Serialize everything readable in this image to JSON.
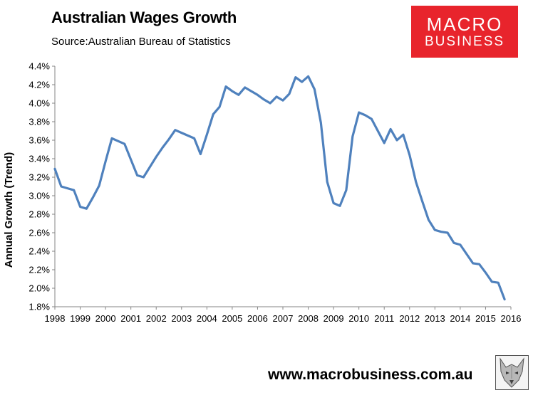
{
  "header": {
    "title": "Australian Wages Growth",
    "subtitle": "Source:Australian Bureau of Statistics"
  },
  "logo": {
    "line1": "MACRO",
    "line2": "BUSINESS"
  },
  "footer": {
    "website": "www.macrobusiness.com.au",
    "mascot_icon": "wolf-icon"
  },
  "colors": {
    "line": "#4f81bd",
    "logo_bg": "#e8242c"
  },
  "chart_data": {
    "type": "line",
    "title": "Australian Wages Growth",
    "xlabel": "",
    "ylabel": "Annual Growth (Trend)",
    "xlim": [
      1998,
      2016
    ],
    "ylim": [
      1.8,
      4.4
    ],
    "x_ticks": [
      "1998",
      "1999",
      "2000",
      "2001",
      "2002",
      "2003",
      "2004",
      "2005",
      "2006",
      "2007",
      "2008",
      "2009",
      "2010",
      "2011",
      "2012",
      "2013",
      "2014",
      "2015",
      "2016"
    ],
    "y_ticks": [
      "1.8%",
      "2.0%",
      "2.2%",
      "2.4%",
      "2.6%",
      "2.8%",
      "3.0%",
      "3.2%",
      "3.4%",
      "3.6%",
      "3.8%",
      "4.0%",
      "4.2%",
      "4.4%"
    ],
    "grid": false,
    "legend": "none",
    "series": [
      {
        "x": [
          1998.0,
          1998.25,
          1998.5,
          1998.75,
          1999.0,
          1999.25,
          1999.5,
          1999.75,
          2000.0,
          2000.25,
          2000.5,
          2000.75,
          2001.0,
          2001.25,
          2001.5,
          2001.75,
          2002.0,
          2002.25,
          2002.5,
          2002.75,
          2003.0,
          2003.25,
          2003.5,
          2003.75,
          2004.0,
          2004.25,
          2004.5,
          2004.75,
          2005.0,
          2005.25,
          2005.5,
          2005.75,
          2006.0,
          2006.25,
          2006.5,
          2006.75,
          2007.0,
          2007.25,
          2007.5,
          2007.75,
          2008.0,
          2008.25,
          2008.5,
          2008.75,
          2009.0,
          2009.25,
          2009.5,
          2009.75,
          2010.0,
          2010.25,
          2010.5,
          2010.75,
          2011.0,
          2011.25,
          2011.5,
          2011.75,
          2012.0,
          2012.25,
          2012.5,
          2012.75,
          2013.0,
          2013.25,
          2013.5,
          2013.75,
          2014.0,
          2014.25,
          2014.5,
          2014.75,
          2015.0,
          2015.25,
          2015.5,
          2015.75
        ],
        "y": [
          3.29,
          3.1,
          3.08,
          3.06,
          2.88,
          2.86,
          2.98,
          3.11,
          3.37,
          3.62,
          3.59,
          3.56,
          3.39,
          3.22,
          3.2,
          3.31,
          3.42,
          3.52,
          3.61,
          3.71,
          3.68,
          3.65,
          3.62,
          3.45,
          3.66,
          3.88,
          3.96,
          4.18,
          4.13,
          4.09,
          4.17,
          4.13,
          4.09,
          4.04,
          4.0,
          4.07,
          4.03,
          4.1,
          4.28,
          4.23,
          4.29,
          4.15,
          3.79,
          3.15,
          2.92,
          2.89,
          3.06,
          3.64,
          3.9,
          3.87,
          3.83,
          3.7,
          3.57,
          3.72,
          3.6,
          3.66,
          3.44,
          3.15,
          2.94,
          2.74,
          2.63,
          2.61,
          2.6,
          2.49,
          2.47,
          2.37,
          2.27,
          2.26,
          2.17,
          2.07,
          2.06,
          1.88
        ]
      }
    ]
  }
}
